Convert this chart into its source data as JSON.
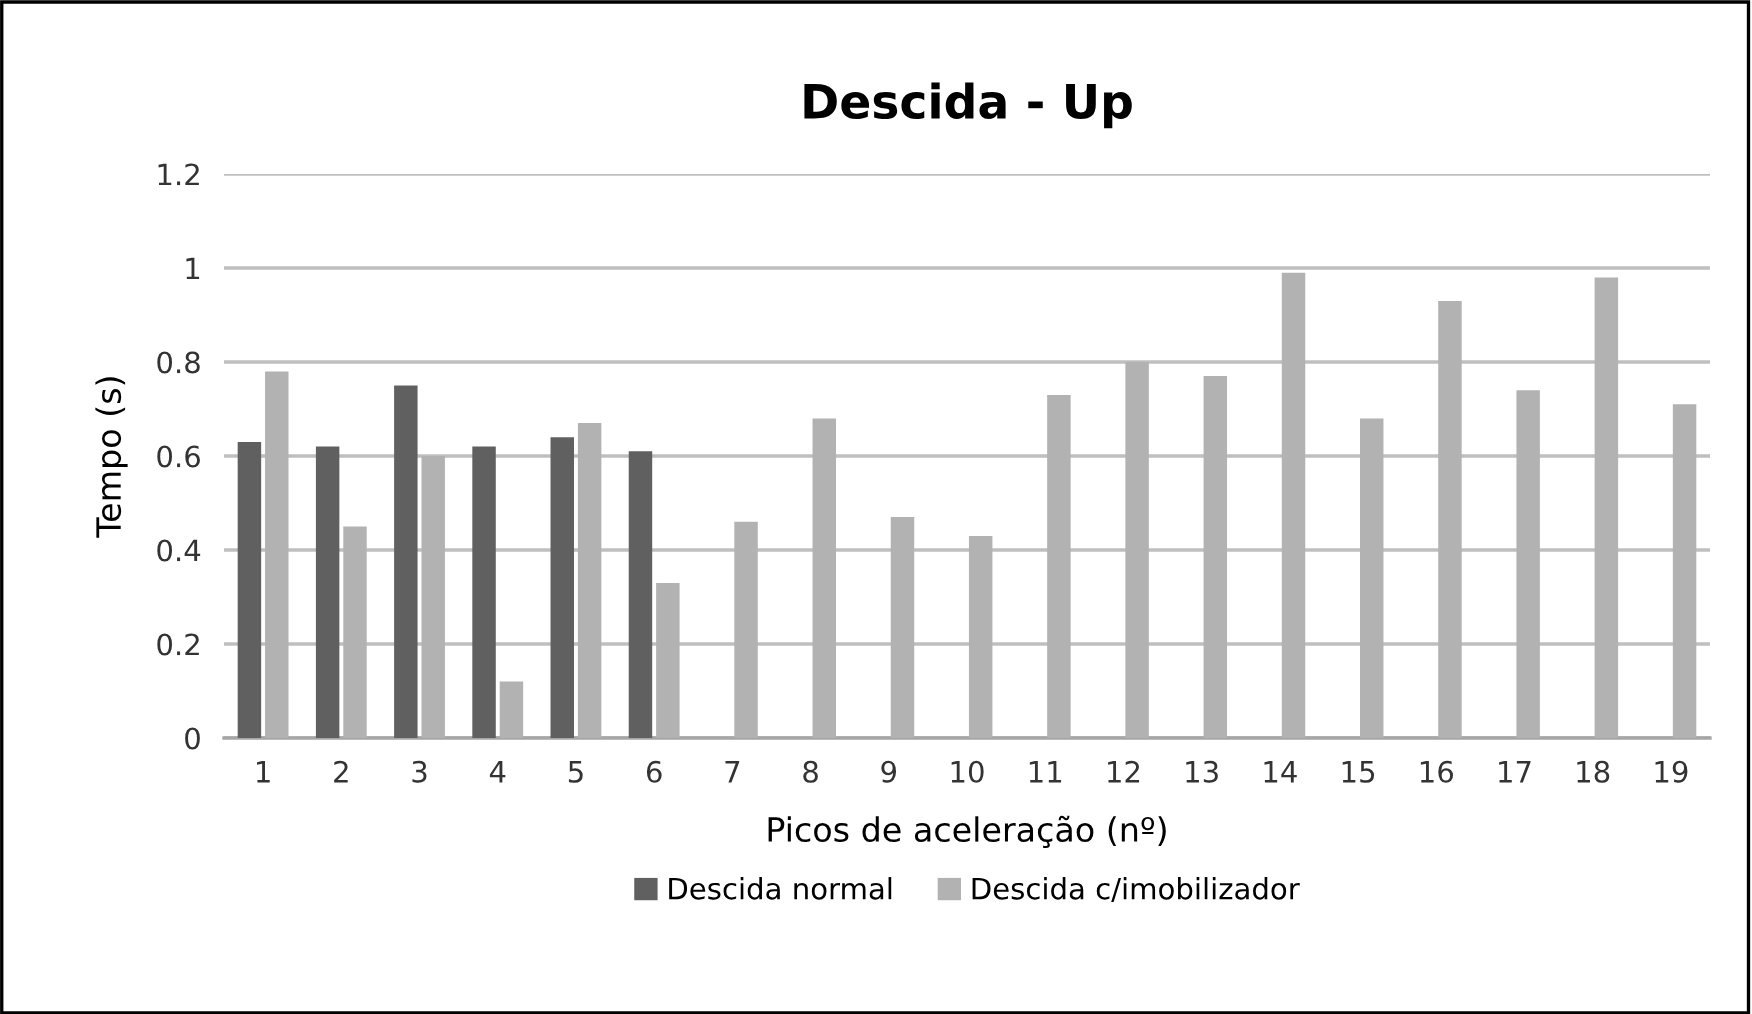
{
  "chart_data": {
    "type": "bar",
    "title": "Descida - Up",
    "xlabel": "Picos de aceleração (nº)",
    "ylabel": "Tempo (s)",
    "categories": [
      "1",
      "2",
      "3",
      "4",
      "5",
      "6",
      "7",
      "8",
      "9",
      "10",
      "11",
      "12",
      "13",
      "14",
      "15",
      "16",
      "17",
      "18",
      "19"
    ],
    "series": [
      {
        "name": "Descida normal",
        "color": "#606060",
        "values": [
          0.63,
          0.62,
          0.75,
          0.62,
          0.64,
          0.61,
          null,
          null,
          null,
          null,
          null,
          null,
          null,
          null,
          null,
          null,
          null,
          null,
          null
        ]
      },
      {
        "name": "Descida c/imobilizador",
        "color": "#b2b2b2",
        "values": [
          0.78,
          0.45,
          0.6,
          0.12,
          0.67,
          0.33,
          0.46,
          0.68,
          0.47,
          0.43,
          0.73,
          0.8,
          0.77,
          0.99,
          0.68,
          0.93,
          0.74,
          0.98,
          0.71
        ]
      }
    ],
    "ylim": [
      0,
      1.2
    ],
    "yticks": [
      0,
      0.2,
      0.4,
      0.6,
      0.8,
      1,
      1.2
    ],
    "grid": "y",
    "legend": "bottom"
  }
}
